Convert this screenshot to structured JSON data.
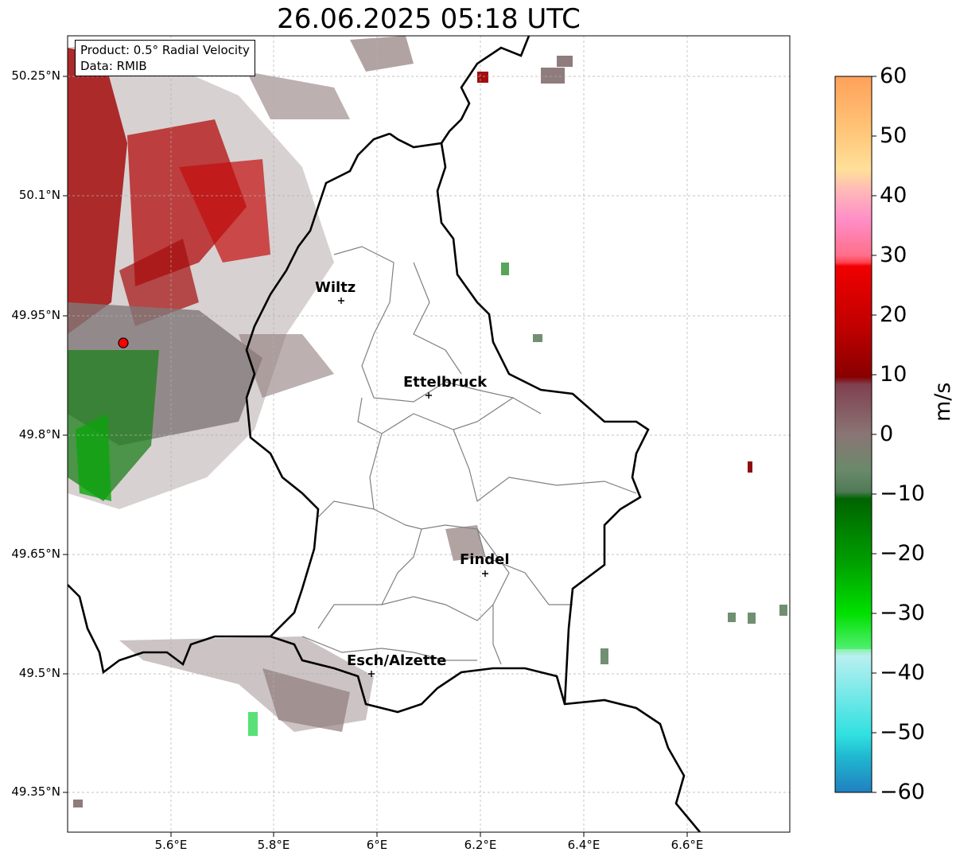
{
  "title": "26.06.2025 05:18 UTC",
  "info_box": {
    "product": "Product: 0.5° Radial Velocity",
    "data": "Data: RMIB"
  },
  "axes": {
    "lon_labels": [
      "5.6°E",
      "5.8°E",
      "6°E",
      "6.2°E",
      "6.4°E",
      "6.6°E"
    ],
    "lat_labels": [
      "50.25°N",
      "50.1°N",
      "49.95°N",
      "49.8°N",
      "49.65°N",
      "49.5°N",
      "49.35°N"
    ]
  },
  "cities": [
    {
      "name": "Wiltz"
    },
    {
      "name": "Ettelbruck"
    },
    {
      "name": "Findel"
    },
    {
      "name": "Esch/Alzette"
    }
  ],
  "colorbar": {
    "unit": "m/s",
    "ticks": [
      "60",
      "50",
      "40",
      "30",
      "20",
      "10",
      "0",
      "−10",
      "−20",
      "−30",
      "−40",
      "−50",
      "−60"
    ],
    "range": [
      -60,
      60
    ]
  },
  "colors": {
    "radar_site": "#ff0000",
    "border": "#000000",
    "canton_border": "#808080",
    "grid": "#b0b0b0"
  }
}
